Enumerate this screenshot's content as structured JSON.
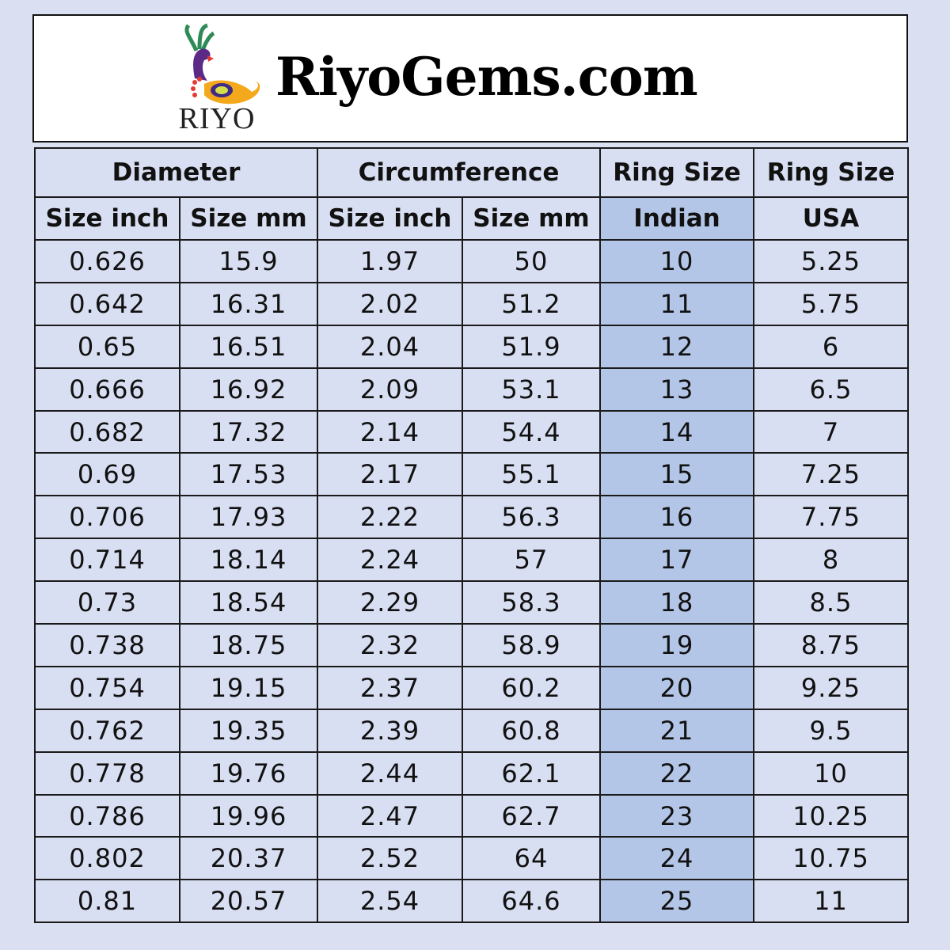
{
  "header": {
    "logo_text": "RIYO",
    "site_name": "RiyoGems.com"
  },
  "colors": {
    "background": "#dae0f1",
    "cell": "#d9dff2",
    "indian_column": "#b4c6e7"
  },
  "table": {
    "group_headers": [
      "Diameter",
      "Circumference",
      "Ring Size",
      "Ring Size"
    ],
    "sub_headers": [
      "Size inch",
      "Size mm",
      "Size inch",
      "Size mm",
      "Indian",
      "USA"
    ],
    "rows": [
      [
        "0.626",
        "15.9",
        "1.97",
        "50",
        "10",
        "5.25"
      ],
      [
        "0.642",
        "16.31",
        "2.02",
        "51.2",
        "11",
        "5.75"
      ],
      [
        "0.65",
        "16.51",
        "2.04",
        "51.9",
        "12",
        "6"
      ],
      [
        "0.666",
        "16.92",
        "2.09",
        "53.1",
        "13",
        "6.5"
      ],
      [
        "0.682",
        "17.32",
        "2.14",
        "54.4",
        "14",
        "7"
      ],
      [
        "0.69",
        "17.53",
        "2.17",
        "55.1",
        "15",
        "7.25"
      ],
      [
        "0.706",
        "17.93",
        "2.22",
        "56.3",
        "16",
        "7.75"
      ],
      [
        "0.714",
        "18.14",
        "2.24",
        "57",
        "17",
        "8"
      ],
      [
        "0.73",
        "18.54",
        "2.29",
        "58.3",
        "18",
        "8.5"
      ],
      [
        "0.738",
        "18.75",
        "2.32",
        "58.9",
        "19",
        "8.75"
      ],
      [
        "0.754",
        "19.15",
        "2.37",
        "60.2",
        "20",
        "9.25"
      ],
      [
        "0.762",
        "19.35",
        "2.39",
        "60.8",
        "21",
        "9.5"
      ],
      [
        "0.778",
        "19.76",
        "2.44",
        "62.1",
        "22",
        "10"
      ],
      [
        "0.786",
        "19.96",
        "2.47",
        "62.7",
        "23",
        "10.25"
      ],
      [
        "0.802",
        "20.37",
        "2.52",
        "64",
        "24",
        "10.75"
      ],
      [
        "0.81",
        "20.57",
        "2.54",
        "64.6",
        "25",
        "11"
      ]
    ]
  }
}
